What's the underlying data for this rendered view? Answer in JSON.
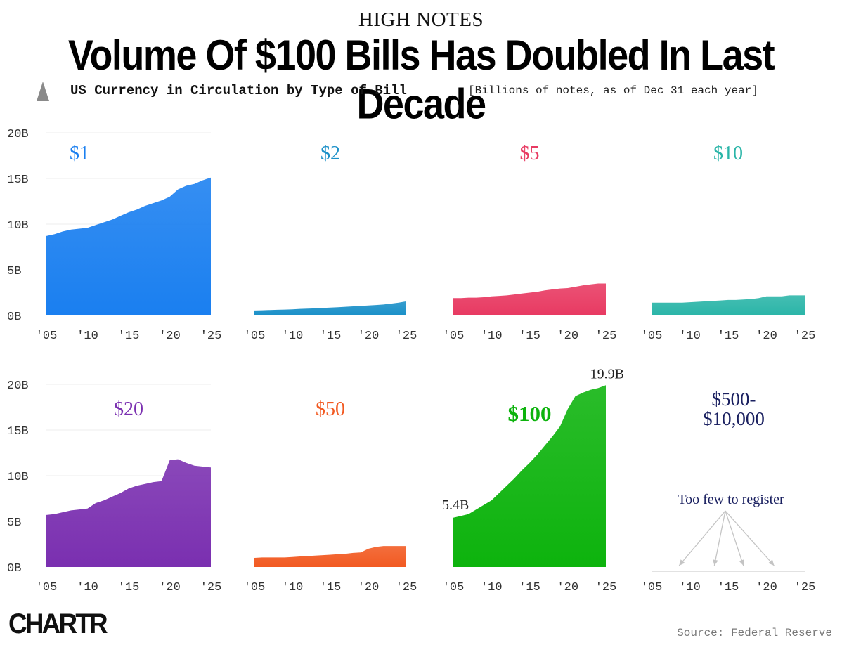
{
  "header": {
    "kicker": "HIGH NOTES",
    "title": "Volume Of $100 Bills Has Doubled In Last Decade",
    "subtitle": "US Currency in Circulation by Type of Bill",
    "subtitle_note": "[Billions of notes, as of Dec 31 each year]"
  },
  "footer": {
    "logo": "CHARTR",
    "source": "Source: Federal Reserve"
  },
  "chart_data": [
    {
      "type": "area",
      "title": "$1",
      "color": "#1a7ff0",
      "x": [
        2005,
        2006,
        2007,
        2008,
        2009,
        2010,
        2011,
        2012,
        2013,
        2014,
        2015,
        2016,
        2017,
        2018,
        2019,
        2020,
        2021,
        2022,
        2023,
        2024,
        2025
      ],
      "values": [
        8.7,
        8.9,
        9.2,
        9.4,
        9.5,
        9.6,
        9.9,
        10.2,
        10.5,
        10.9,
        11.3,
        11.6,
        12.0,
        12.3,
        12.6,
        13.0,
        13.8,
        14.2,
        14.4,
        14.8,
        15.1
      ],
      "y_ticks": [
        "0B",
        "5B",
        "10B",
        "15B",
        "20B"
      ],
      "ylim": [
        0,
        20
      ],
      "x_ticks": [
        "'05",
        "'10",
        "'15",
        "'20",
        "'25"
      ]
    },
    {
      "type": "area",
      "title": "$2",
      "color": "#1b90c8",
      "x": [
        2005,
        2006,
        2007,
        2008,
        2009,
        2010,
        2011,
        2012,
        2013,
        2014,
        2015,
        2016,
        2017,
        2018,
        2019,
        2020,
        2021,
        2022,
        2023,
        2024,
        2025
      ],
      "values": [
        0.55,
        0.57,
        0.6,
        0.62,
        0.65,
        0.68,
        0.72,
        0.75,
        0.78,
        0.82,
        0.86,
        0.9,
        0.95,
        1.0,
        1.05,
        1.1,
        1.15,
        1.2,
        1.3,
        1.4,
        1.55
      ],
      "ylim": [
        0,
        20
      ],
      "x_ticks": [
        "'05",
        "'10",
        "'15",
        "'20",
        "'25"
      ]
    },
    {
      "type": "area",
      "title": "$5",
      "color": "#e83a62",
      "x": [
        2005,
        2006,
        2007,
        2008,
        2009,
        2010,
        2011,
        2012,
        2013,
        2014,
        2015,
        2016,
        2017,
        2018,
        2019,
        2020,
        2021,
        2022,
        2023,
        2024,
        2025
      ],
      "values": [
        1.9,
        1.9,
        1.95,
        1.95,
        2.0,
        2.1,
        2.15,
        2.2,
        2.3,
        2.4,
        2.5,
        2.6,
        2.75,
        2.85,
        2.95,
        3.0,
        3.15,
        3.3,
        3.4,
        3.5,
        3.5
      ],
      "ylim": [
        0,
        20
      ],
      "x_ticks": [
        "'05",
        "'10",
        "'15",
        "'20",
        "'25"
      ]
    },
    {
      "type": "area",
      "title": "$10",
      "color": "#2bb5a8",
      "x": [
        2005,
        2006,
        2007,
        2008,
        2009,
        2010,
        2011,
        2012,
        2013,
        2014,
        2015,
        2016,
        2017,
        2018,
        2019,
        2020,
        2021,
        2022,
        2023,
        2024,
        2025
      ],
      "values": [
        1.4,
        1.4,
        1.4,
        1.4,
        1.4,
        1.45,
        1.5,
        1.55,
        1.6,
        1.65,
        1.7,
        1.7,
        1.75,
        1.8,
        1.9,
        2.1,
        2.1,
        2.1,
        2.2,
        2.2,
        2.2
      ],
      "ylim": [
        0,
        20
      ],
      "x_ticks": [
        "'05",
        "'10",
        "'15",
        "'20",
        "'25"
      ]
    },
    {
      "type": "area",
      "title": "$20",
      "color": "#7a2fb0",
      "x": [
        2005,
        2006,
        2007,
        2008,
        2009,
        2010,
        2011,
        2012,
        2013,
        2014,
        2015,
        2016,
        2017,
        2018,
        2019,
        2020,
        2021,
        2022,
        2023,
        2024,
        2025
      ],
      "values": [
        5.7,
        5.8,
        6.0,
        6.2,
        6.3,
        6.4,
        7.0,
        7.3,
        7.7,
        8.1,
        8.6,
        8.9,
        9.1,
        9.3,
        9.4,
        11.7,
        11.8,
        11.4,
        11.1,
        11.0,
        10.9
      ],
      "y_ticks": [
        "0B",
        "5B",
        "10B",
        "15B",
        "20B"
      ],
      "ylim": [
        0,
        20
      ],
      "x_ticks": [
        "'05",
        "'10",
        "'15",
        "'20",
        "'25"
      ]
    },
    {
      "type": "area",
      "title": "$50",
      "color": "#f25a22",
      "x": [
        2005,
        2006,
        2007,
        2008,
        2009,
        2010,
        2011,
        2012,
        2013,
        2014,
        2015,
        2016,
        2017,
        2018,
        2019,
        2020,
        2021,
        2022,
        2023,
        2024,
        2025
      ],
      "values": [
        1.0,
        1.05,
        1.05,
        1.05,
        1.05,
        1.1,
        1.15,
        1.2,
        1.25,
        1.3,
        1.35,
        1.4,
        1.45,
        1.55,
        1.6,
        2.0,
        2.2,
        2.3,
        2.3,
        2.3,
        2.3
      ],
      "ylim": [
        0,
        20
      ],
      "x_ticks": [
        "'05",
        "'10",
        "'15",
        "'20",
        "'25"
      ]
    },
    {
      "type": "area",
      "title": "$100",
      "color": "#0db30d",
      "x": [
        2005,
        2006,
        2007,
        2008,
        2009,
        2010,
        2011,
        2012,
        2013,
        2014,
        2015,
        2016,
        2017,
        2018,
        2019,
        2020,
        2021,
        2022,
        2023,
        2024,
        2025
      ],
      "values": [
        5.4,
        5.6,
        5.8,
        6.3,
        6.8,
        7.3,
        8.1,
        8.9,
        9.7,
        10.6,
        11.4,
        12.3,
        13.3,
        14.3,
        15.4,
        17.3,
        18.7,
        19.1,
        19.4,
        19.6,
        19.9
      ],
      "ylim": [
        0,
        20
      ],
      "x_ticks": [
        "'05",
        "'10",
        "'15",
        "'20",
        "'25"
      ],
      "annotations": {
        "start": "5.4B",
        "end": "19.9B"
      }
    },
    {
      "type": "area",
      "title": "$500-$10,000",
      "title_lines": [
        "$500-",
        "$10,000"
      ],
      "color": "#1a2060",
      "x": [],
      "values": [],
      "ylim": [
        0,
        20
      ],
      "x_ticks": [
        "'05",
        "'10",
        "'15",
        "'20",
        "'25"
      ],
      "note": "Too few to register"
    }
  ]
}
